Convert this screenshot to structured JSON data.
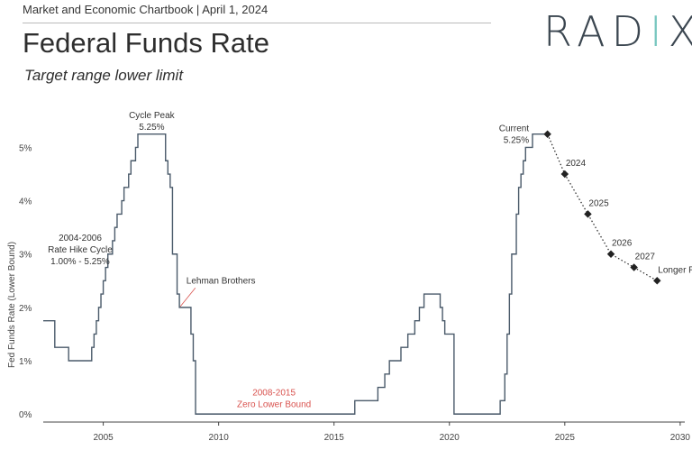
{
  "header": {
    "chartbook": "Market and Economic Chartbook | April 1, 2024",
    "title": "Federal Funds Rate",
    "subtitle": "Target range lower limit"
  },
  "logo": {
    "left": "RAD",
    "pillar": "I",
    "right": "X"
  },
  "colors": {
    "line": "#4a5a6a",
    "projection": "#222222",
    "annotation_red": "#d9534f"
  },
  "chart_data": {
    "type": "line",
    "title": "Federal Funds Rate",
    "subtitle": "Target range lower limit",
    "xlabel": "",
    "ylabel": "Fed Funds Rate (Lower Bound)",
    "xlim": [
      2002.4,
      2030.2
    ],
    "ylim": [
      -0.15,
      5.6
    ],
    "x_ticks": [
      2005,
      2010,
      2015,
      2020,
      2025,
      2030
    ],
    "y_ticks": [
      {
        "value": 0,
        "label": "0%"
      },
      {
        "value": 1,
        "label": "1%"
      },
      {
        "value": 2,
        "label": "2%"
      },
      {
        "value": 3,
        "label": "3%"
      },
      {
        "value": 4,
        "label": "4%"
      },
      {
        "value": 5,
        "label": "5%"
      }
    ],
    "grid": false,
    "series": [
      {
        "step": true,
        "points": [
          [
            2002.4,
            1.75
          ],
          [
            2002.9,
            1.25
          ],
          [
            2003.5,
            1.0
          ],
          [
            2004.5,
            1.25
          ],
          [
            2004.6,
            1.5
          ],
          [
            2004.7,
            1.75
          ],
          [
            2004.8,
            2.0
          ],
          [
            2004.9,
            2.25
          ],
          [
            2005.0,
            2.5
          ],
          [
            2005.1,
            2.75
          ],
          [
            2005.2,
            3.0
          ],
          [
            2005.4,
            3.25
          ],
          [
            2005.5,
            3.5
          ],
          [
            2005.6,
            3.75
          ],
          [
            2005.8,
            4.0
          ],
          [
            2005.9,
            4.25
          ],
          [
            2006.1,
            4.5
          ],
          [
            2006.2,
            4.75
          ],
          [
            2006.4,
            5.0
          ],
          [
            2006.5,
            5.25
          ],
          [
            2007.7,
            4.75
          ],
          [
            2007.8,
            4.5
          ],
          [
            2007.9,
            4.25
          ],
          [
            2008.0,
            3.0
          ],
          [
            2008.2,
            2.25
          ],
          [
            2008.3,
            2.0
          ],
          [
            2008.8,
            1.5
          ],
          [
            2008.9,
            1.0
          ],
          [
            2009.0,
            0.0
          ],
          [
            2015.9,
            0.25
          ],
          [
            2016.9,
            0.5
          ],
          [
            2017.2,
            0.75
          ],
          [
            2017.4,
            1.0
          ],
          [
            2017.9,
            1.25
          ],
          [
            2018.2,
            1.5
          ],
          [
            2018.5,
            1.75
          ],
          [
            2018.7,
            2.0
          ],
          [
            2018.9,
            2.25
          ],
          [
            2019.6,
            2.0
          ],
          [
            2019.7,
            1.75
          ],
          [
            2019.8,
            1.5
          ],
          [
            2020.2,
            0.0
          ],
          [
            2022.2,
            0.25
          ],
          [
            2022.4,
            0.75
          ],
          [
            2022.5,
            1.5
          ],
          [
            2022.6,
            2.25
          ],
          [
            2022.7,
            3.0
          ],
          [
            2022.9,
            3.75
          ],
          [
            2023.0,
            4.25
          ],
          [
            2023.1,
            4.5
          ],
          [
            2023.2,
            4.75
          ],
          [
            2023.3,
            5.0
          ],
          [
            2023.6,
            5.25
          ],
          [
            2024.25,
            5.25
          ]
        ]
      },
      {
        "step": false,
        "dotted": true,
        "points": [
          [
            2024.25,
            5.25
          ],
          [
            2025.0,
            4.5
          ],
          [
            2026.0,
            3.75
          ],
          [
            2027.0,
            3.0
          ],
          [
            2028.0,
            2.75
          ],
          [
            2029.0,
            2.5
          ]
        ],
        "labels": [
          "",
          "2024",
          "2025",
          "2026",
          "2027",
          "Longer Run"
        ]
      }
    ],
    "annotations": [
      {
        "lines": [
          "Cycle Peak",
          "5.25%"
        ],
        "x": 2007.1,
        "y": 5.55,
        "anchor": "middle",
        "color": "dark"
      },
      {
        "lines": [
          "2004-2006",
          "Rate Hike Cycle",
          "1.00% - 5.25%"
        ],
        "x": 2004.0,
        "y": 3.25,
        "anchor": "middle",
        "color": "dark"
      },
      {
        "lines": [
          "Lehman Brothers"
        ],
        "x": 2008.6,
        "y": 2.45,
        "anchor": "start",
        "color": "dark"
      },
      {
        "lines": [
          "2008-2015",
          "Zero Lower Bound"
        ],
        "x": 2012.4,
        "y": 0.35,
        "anchor": "middle",
        "color": "red"
      },
      {
        "lines": [
          "Current",
          "5.25%"
        ],
        "x": 2023.45,
        "y": 5.3,
        "anchor": "end",
        "color": "dark"
      }
    ]
  }
}
